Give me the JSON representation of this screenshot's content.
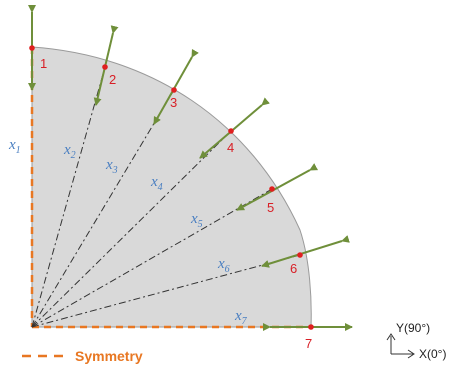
{
  "points": [
    {
      "label": "1"
    },
    {
      "label": "2"
    },
    {
      "label": "3"
    },
    {
      "label": "4"
    },
    {
      "label": "5"
    },
    {
      "label": "6"
    },
    {
      "label": "7"
    }
  ],
  "section_lines": [
    {
      "name": "x",
      "sub": "1"
    },
    {
      "name": "x",
      "sub": "2"
    },
    {
      "name": "x",
      "sub": "3"
    },
    {
      "name": "x",
      "sub": "4"
    },
    {
      "name": "x",
      "sub": "5"
    },
    {
      "name": "x",
      "sub": "6"
    },
    {
      "name": "x",
      "sub": "7"
    }
  ],
  "axes": {
    "y_label": "Y(90°)",
    "x_label": "X(0°)"
  },
  "legend": {
    "label": "Symmetry"
  },
  "colors": {
    "region_fill": "#d9d9d9",
    "symmetry": "#e87722",
    "arrow": "#6f8f3a",
    "point": "#e02020",
    "point_label": "#d81f26",
    "line_label": "#4a7fc1"
  }
}
